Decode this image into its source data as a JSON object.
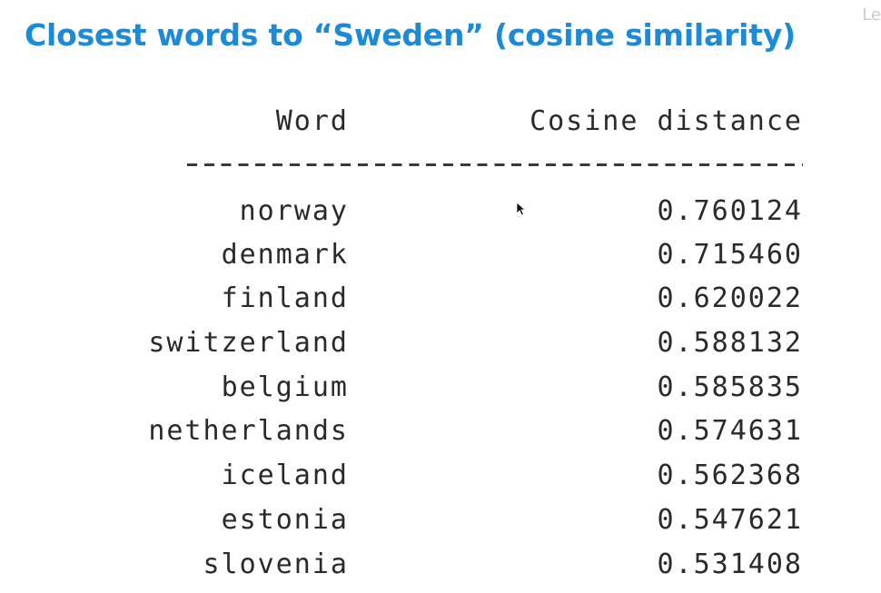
{
  "slide": {
    "title": "Closest words to “Sweden” (cosine similarity)",
    "corner_text": "Le"
  },
  "table": {
    "headers": {
      "word": "Word",
      "distance": "Cosine distance"
    },
    "separator": "--------------------------------------",
    "rows": [
      {
        "word": "norway",
        "distance": "0.760124"
      },
      {
        "word": "denmark",
        "distance": "0.715460"
      },
      {
        "word": "finland",
        "distance": "0.620022"
      },
      {
        "word": "switzerland",
        "distance": "0.588132"
      },
      {
        "word": "belgium",
        "distance": "0.585835"
      },
      {
        "word": "netherlands",
        "distance": "0.574631"
      },
      {
        "word": "iceland",
        "distance": "0.562368"
      },
      {
        "word": "estonia",
        "distance": "0.547621"
      },
      {
        "word": "slovenia",
        "distance": "0.531408"
      }
    ]
  },
  "colors": {
    "title": "#1b8ad8",
    "text": "#2a2a2a",
    "background": "#ffffff"
  },
  "icons": {
    "cursor": "mouse-pointer-icon"
  }
}
